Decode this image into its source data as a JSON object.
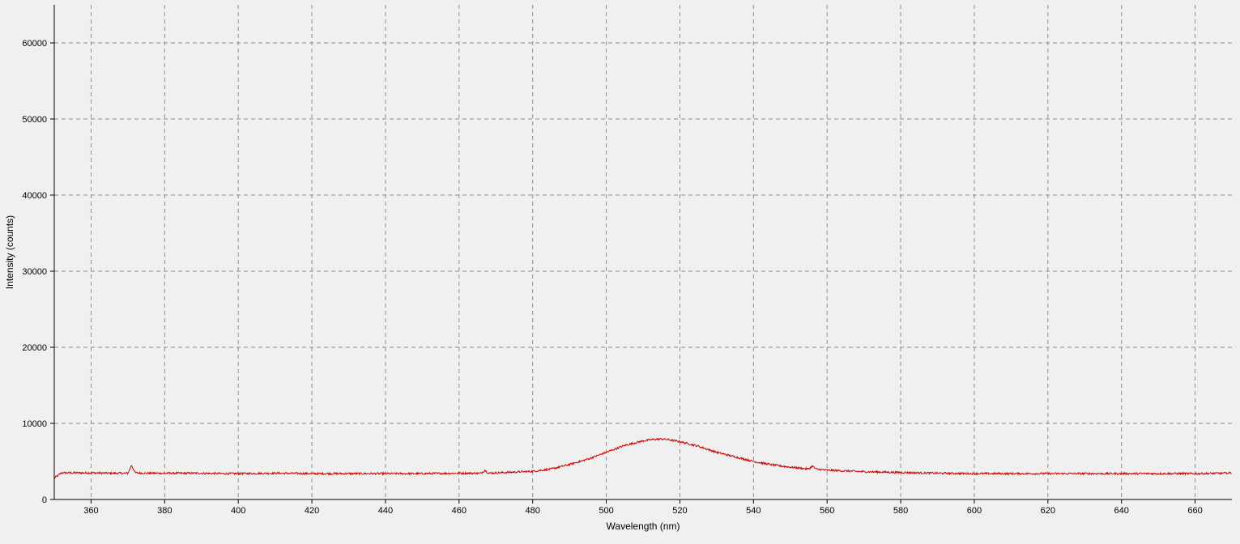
{
  "colors": {
    "background": "#f0f0f0",
    "series": "#cc0000",
    "grid": "#8c8c8c",
    "axis": "#000000"
  },
  "chart_data": {
    "type": "line",
    "title": "",
    "xlabel": "Wavelength (nm)",
    "ylabel": "Intensity (counts)",
    "xlim": [
      350,
      670
    ],
    "ylim": [
      0,
      65000
    ],
    "grid": true,
    "grid_style": "dashed",
    "legend": "none",
    "x_ticks": [
      360,
      380,
      400,
      420,
      440,
      460,
      480,
      500,
      520,
      540,
      560,
      580,
      600,
      620,
      640,
      660
    ],
    "x_tick_labels": [
      "360",
      "380",
      "400",
      "420",
      "440",
      "460",
      "480",
      "500",
      "520",
      "540",
      "560",
      "580",
      "600",
      "620",
      "640",
      "660"
    ],
    "y_ticks": [
      0,
      10000,
      20000,
      30000,
      40000,
      50000,
      60000
    ],
    "y_tick_labels": [
      "0",
      "10000",
      "20000",
      "30000",
      "40000",
      "50000",
      "60000"
    ],
    "series": [
      {
        "color": "#cc0000",
        "x": [
          350,
          352,
          356,
          360,
          365,
          370,
          371,
          372,
          375,
          380,
          385,
          390,
          395,
          400,
          410,
          420,
          430,
          440,
          450,
          460,
          466,
          467,
          468,
          470,
          475,
          480,
          485,
          490,
          495,
          500,
          505,
          510,
          513,
          515,
          517,
          520,
          525,
          530,
          535,
          540,
          545,
          550,
          555,
          556,
          557,
          560,
          565,
          570,
          575,
          580,
          590,
          600,
          610,
          620,
          630,
          640,
          650,
          660,
          668,
          670
        ],
        "y": [
          2800,
          3500,
          3500,
          3500,
          3450,
          3450,
          4500,
          3500,
          3450,
          3450,
          3450,
          3450,
          3400,
          3400,
          3450,
          3400,
          3400,
          3400,
          3400,
          3450,
          3450,
          3850,
          3450,
          3500,
          3600,
          3700,
          4000,
          4600,
          5300,
          6200,
          7100,
          7700,
          7900,
          7950,
          7850,
          7600,
          7000,
          6200,
          5600,
          5000,
          4550,
          4250,
          4000,
          4400,
          4000,
          3850,
          3750,
          3650,
          3600,
          3550,
          3450,
          3400,
          3400,
          3400,
          3400,
          3400,
          3400,
          3400,
          3450,
          3500
        ]
      }
    ]
  }
}
